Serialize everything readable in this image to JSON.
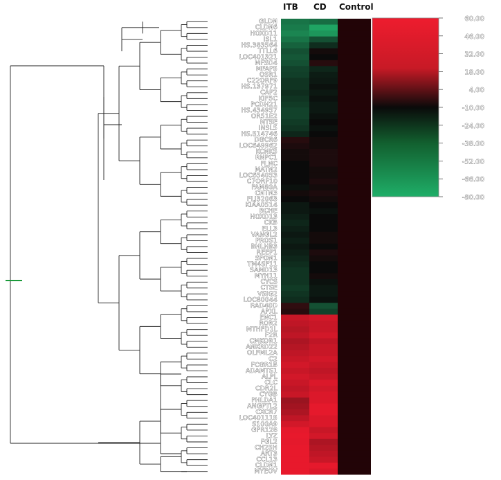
{
  "chart_data": {
    "type": "heatmap",
    "columns": [
      "ITB",
      "CD",
      "Control"
    ],
    "rows": [
      {
        "gene": "GLDN",
        "values": [
          -40,
          -38,
          0
        ]
      },
      {
        "gene": "CLDN6",
        "values": [
          -42,
          -55,
          0
        ]
      },
      {
        "gene": "HOXD11",
        "values": [
          -45,
          -50,
          0
        ]
      },
      {
        "gene": "ISL1",
        "values": [
          -40,
          -30,
          0
        ]
      },
      {
        "gene": "HS.383564",
        "values": [
          -35,
          -20,
          0
        ]
      },
      {
        "gene": "TTLL6",
        "values": [
          -30,
          -8,
          0
        ]
      },
      {
        "gene": "LOC401321",
        "values": [
          -32,
          -10,
          0
        ]
      },
      {
        "gene": "MFSD4",
        "values": [
          -30,
          -4,
          0
        ]
      },
      {
        "gene": "MFAP5",
        "values": [
          -26,
          -18,
          0
        ]
      },
      {
        "gene": "OSR1",
        "values": [
          -25,
          -15,
          0
        ]
      },
      {
        "gene": "C22ORF9",
        "values": [
          -22,
          -14,
          0
        ]
      },
      {
        "gene": "HS.137971",
        "values": [
          -22,
          -12,
          0
        ]
      },
      {
        "gene": "CAP2",
        "values": [
          -20,
          -14,
          0
        ]
      },
      {
        "gene": "KIF5C",
        "values": [
          -22,
          -12,
          0
        ]
      },
      {
        "gene": "PCDH21",
        "values": [
          -24,
          -14,
          0
        ]
      },
      {
        "gene": "HS.434957",
        "values": [
          -26,
          -14,
          0
        ]
      },
      {
        "gene": "OR51E2",
        "values": [
          -26,
          -12,
          0
        ]
      },
      {
        "gene": "NT5E",
        "values": [
          -24,
          -10,
          0
        ]
      },
      {
        "gene": "INSL5",
        "values": [
          -22,
          -12,
          0
        ]
      },
      {
        "gene": "HS.514746",
        "values": [
          -18,
          -10,
          0
        ]
      },
      {
        "gene": "DGCR6",
        "values": [
          -4,
          -8,
          0
        ]
      },
      {
        "gene": "LOC649962",
        "values": [
          -6,
          -8,
          0
        ]
      },
      {
        "gene": "KCNK5",
        "values": [
          -8,
          -6,
          0
        ]
      },
      {
        "gene": "RNPC1",
        "values": [
          -8,
          -6,
          0
        ]
      },
      {
        "gene": "FLNC",
        "values": [
          -10,
          -6,
          0
        ]
      },
      {
        "gene": "MATN2",
        "values": [
          -10,
          -8,
          0
        ]
      },
      {
        "gene": "LOC654053",
        "values": [
          -10,
          -8,
          0
        ]
      },
      {
        "gene": "C7ORF10",
        "values": [
          -10,
          -6,
          0
        ]
      },
      {
        "gene": "FAM80A",
        "values": [
          -12,
          -8,
          0
        ]
      },
      {
        "gene": "CNTN3",
        "values": [
          -8,
          -6,
          0
        ]
      },
      {
        "gene": "FLJ32063",
        "values": [
          -10,
          -8,
          0
        ]
      },
      {
        "gene": "KIAA0514",
        "values": [
          -14,
          -10,
          0
        ]
      },
      {
        "gene": "BCHE",
        "values": [
          -14,
          -12,
          0
        ]
      },
      {
        "gene": "HOXD13",
        "values": [
          -16,
          -10,
          0
        ]
      },
      {
        "gene": "CKB",
        "values": [
          -18,
          -10,
          0
        ]
      },
      {
        "gene": "ELL3",
        "values": [
          -16,
          -10,
          0
        ]
      },
      {
        "gene": "VANGL2",
        "values": [
          -14,
          -8,
          0
        ]
      },
      {
        "gene": "PROS1",
        "values": [
          -16,
          -8,
          0
        ]
      },
      {
        "gene": "BHLHB3",
        "values": [
          -14,
          -10,
          0
        ]
      },
      {
        "gene": "REEP1",
        "values": [
          -16,
          -6,
          0
        ]
      },
      {
        "gene": "SPON1",
        "values": [
          -18,
          -8,
          0
        ]
      },
      {
        "gene": "TM4SF11",
        "values": [
          -20,
          -10,
          0
        ]
      },
      {
        "gene": "SAMD13",
        "values": [
          -22,
          -10,
          0
        ]
      },
      {
        "gene": "MYH11",
        "values": [
          -22,
          -8,
          0
        ]
      },
      {
        "gene": "CYCS",
        "values": [
          -22,
          -12,
          0
        ]
      },
      {
        "gene": "CTSE",
        "values": [
          -24,
          -14,
          0
        ]
      },
      {
        "gene": "VSIG2",
        "values": [
          -22,
          -14,
          0
        ]
      },
      {
        "gene": "LOC80044",
        "values": [
          -20,
          -12,
          0
        ]
      },
      {
        "gene": "RAD40D",
        "values": [
          -2,
          -30,
          0
        ]
      },
      {
        "gene": "APXL",
        "values": [
          -4,
          -26,
          0
        ]
      },
      {
        "gene": "ENC1",
        "values": [
          30,
          32,
          0
        ]
      },
      {
        "gene": "ROR2",
        "values": [
          28,
          30,
          0
        ]
      },
      {
        "gene": "MTHFD1L",
        "values": [
          26,
          30,
          0
        ]
      },
      {
        "gene": "F2R",
        "values": [
          28,
          32,
          0
        ]
      },
      {
        "gene": "CMKOR1",
        "values": [
          24,
          28,
          0
        ]
      },
      {
        "gene": "ANKRD22",
        "values": [
          26,
          30,
          0
        ]
      },
      {
        "gene": "OLFML2A",
        "values": [
          28,
          30,
          0
        ]
      },
      {
        "gene": "C2",
        "values": [
          30,
          32,
          0
        ]
      },
      {
        "gene": "FCGR1B",
        "values": [
          32,
          30,
          0
        ]
      },
      {
        "gene": "ADAMTS1",
        "values": [
          30,
          28,
          0
        ]
      },
      {
        "gene": "ALPL",
        "values": [
          32,
          30,
          0
        ]
      },
      {
        "gene": "CLC",
        "values": [
          30,
          34,
          0
        ]
      },
      {
        "gene": "CDR2L",
        "values": [
          28,
          32,
          0
        ]
      },
      {
        "gene": "CYGB",
        "values": [
          30,
          34,
          0
        ]
      },
      {
        "gene": "PHLDA1",
        "values": [
          20,
          34,
          0
        ]
      },
      {
        "gene": "ANGPTL2",
        "values": [
          22,
          36,
          0
        ]
      },
      {
        "gene": "CXCR7",
        "values": [
          24,
          36,
          0
        ]
      },
      {
        "gene": "LOC401115",
        "values": [
          28,
          34,
          0
        ]
      },
      {
        "gene": "S100A9",
        "values": [
          32,
          34,
          0
        ]
      },
      {
        "gene": "GPR128",
        "values": [
          36,
          30,
          0
        ]
      },
      {
        "gene": "LYZ",
        "values": [
          38,
          32,
          0
        ]
      },
      {
        "gene": "FGL2",
        "values": [
          36,
          24,
          0
        ]
      },
      {
        "gene": "CH25H",
        "values": [
          40,
          26,
          0
        ]
      },
      {
        "gene": "ART3",
        "values": [
          44,
          28,
          0
        ]
      },
      {
        "gene": "CCL13",
        "values": [
          46,
          30,
          0
        ]
      },
      {
        "gene": "CLDN1",
        "values": [
          40,
          36,
          0
        ]
      },
      {
        "gene": "MYEOV",
        "values": [
          42,
          34,
          0
        ]
      }
    ],
    "legend_ticks": [
      "60.00",
      "46.00",
      "32.00",
      "18.00",
      "4.00",
      "-10.00",
      "-24.00",
      "-38.00",
      "-52.00",
      "-66.00",
      "-80.00"
    ],
    "scale": {
      "max": 60,
      "min": -80,
      "mid": -10
    },
    "colors": {
      "high": "#e8192c",
      "mid": "#0a0a0a",
      "low": "#1fa463",
      "control": "#220407"
    }
  }
}
